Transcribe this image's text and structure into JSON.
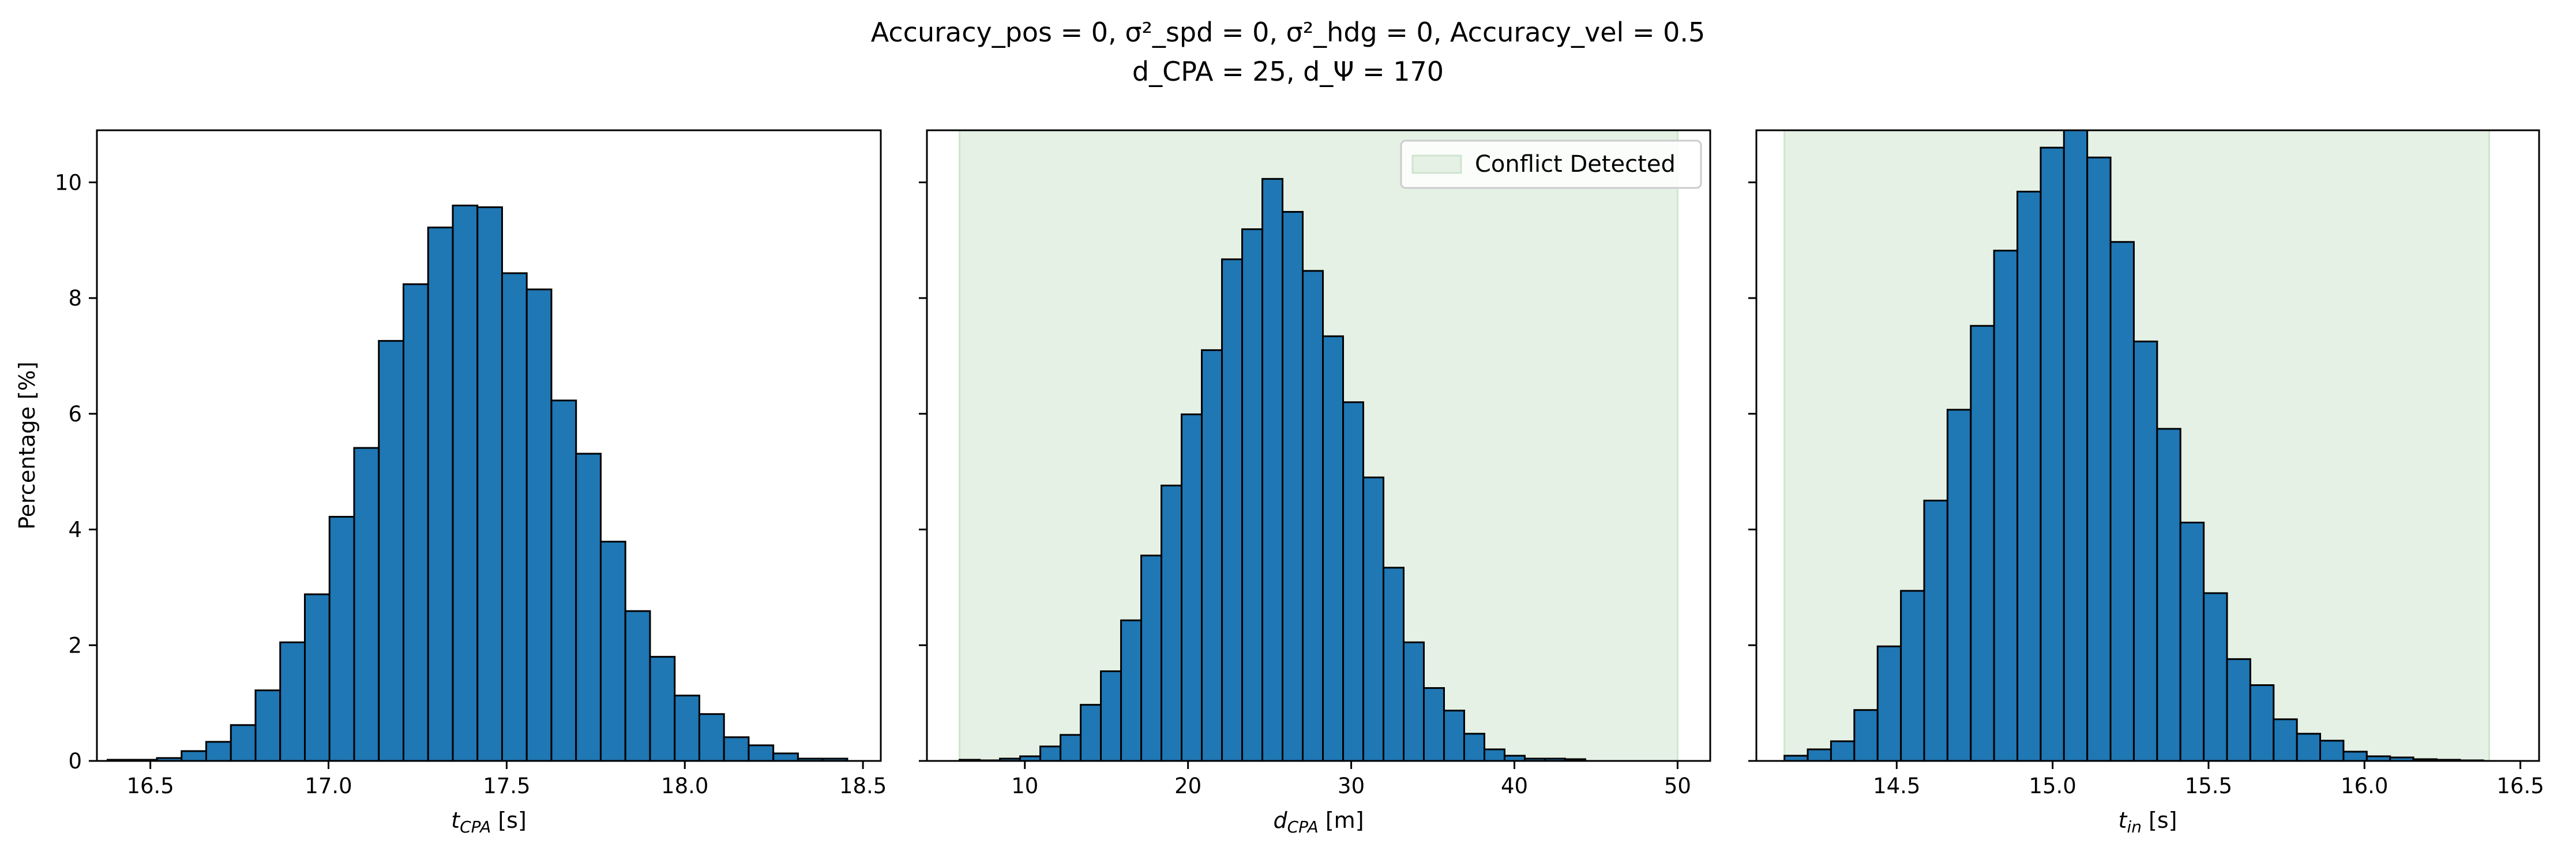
{
  "figure": {
    "title_line1": "Accuracy_pos = 0, σ²_spd = 0, σ²_hdg = 0, Accuracy_vel = 0.5",
    "title_line2": "d_CPA = 25, d_Ψ = 170"
  },
  "colors": {
    "bar_fill": "#1f77b4",
    "bar_edge": "#000000",
    "shade": "#e5f1e5",
    "shade_edge": "#cfe5cf"
  },
  "chart_data": [
    {
      "type": "bar",
      "title": "",
      "xlabel": "t_CPA [s]",
      "ylabel": "Percentage [%]",
      "xlim": [
        16.35,
        18.55
      ],
      "ylim": [
        0,
        10.9
      ],
      "xticks": [
        "16.5",
        "17.0",
        "17.5",
        "18.0",
        "18.5"
      ],
      "yticks": [
        "0",
        "2",
        "4",
        "6",
        "8",
        "10"
      ],
      "bin_start": 16.38,
      "bin_width": 0.0692,
      "values": [
        0.02,
        0.02,
        0.05,
        0.17,
        0.33,
        0.62,
        1.22,
        2.05,
        2.88,
        4.22,
        5.41,
        7.26,
        8.24,
        9.22,
        9.6,
        9.57,
        8.43,
        8.15,
        6.23,
        5.31,
        3.79,
        2.59,
        1.8,
        1.13,
        0.81,
        0.41,
        0.27,
        0.13,
        0.04,
        0.04
      ],
      "shaded_region": null,
      "legend": null
    },
    {
      "type": "bar",
      "title": "",
      "xlabel": "d_CPA [m]",
      "ylabel": "",
      "xlim": [
        4.0,
        52.0
      ],
      "ylim": [
        0,
        10.9
      ],
      "xticks": [
        "10",
        "20",
        "30",
        "40",
        "50"
      ],
      "yticks": [
        "0",
        "2",
        "4",
        "6",
        "8",
        "10"
      ],
      "bin_start": 6.0,
      "bin_width": 1.237,
      "values": [
        0.02,
        0.01,
        0.04,
        0.08,
        0.25,
        0.45,
        0.97,
        1.55,
        2.43,
        3.55,
        4.76,
        5.99,
        7.1,
        8.67,
        9.19,
        10.06,
        9.49,
        8.47,
        7.34,
        6.2,
        4.9,
        3.34,
        2.05,
        1.26,
        0.87,
        0.47,
        0.2,
        0.09,
        0.04,
        0.04,
        0.03
      ],
      "shaded_region": [
        6.0,
        50.0
      ],
      "legend": {
        "label": "Conflict Detected",
        "position": "top-right"
      }
    },
    {
      "type": "bar",
      "title": "",
      "xlabel": "t_in [s]",
      "ylabel": "",
      "xlim": [
        14.05,
        16.56
      ],
      "ylim": [
        0,
        10.9
      ],
      "xticks": [
        "14.5",
        "15.0",
        "15.5",
        "16.0",
        "16.5"
      ],
      "yticks": [
        "0",
        "2",
        "4",
        "6",
        "8",
        "10"
      ],
      "bin_start": 14.14,
      "bin_width": 0.0747,
      "values": [
        0.09,
        0.2,
        0.34,
        0.88,
        1.98,
        2.94,
        4.5,
        6.07,
        7.52,
        8.82,
        9.84,
        10.6,
        10.91,
        10.43,
        8.97,
        7.25,
        5.74,
        4.12,
        2.9,
        1.76,
        1.31,
        0.72,
        0.47,
        0.35,
        0.16,
        0.08,
        0.06,
        0.03,
        0.02,
        0.01
      ],
      "shaded_region": [
        14.14,
        16.4
      ],
      "legend": null
    }
  ]
}
